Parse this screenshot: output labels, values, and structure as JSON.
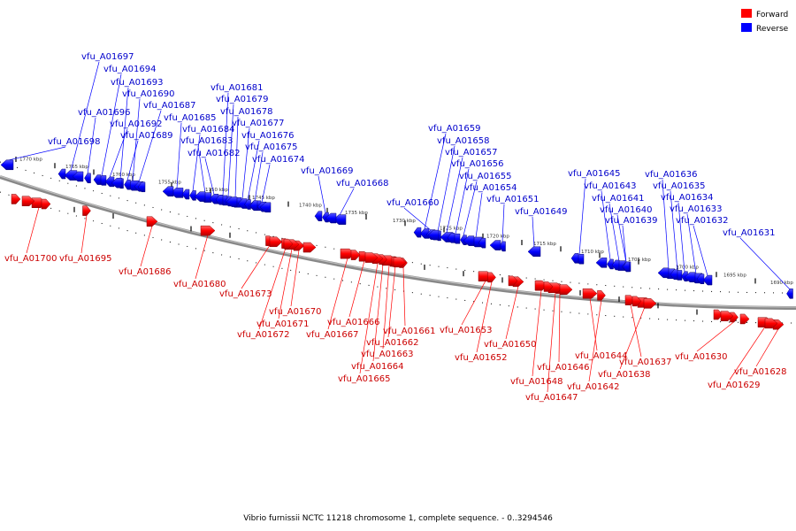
{
  "legend": {
    "forward_label": "Forward",
    "reverse_label": "Reverse",
    "forward_color": "#ff0000",
    "reverse_color": "#0000ff"
  },
  "caption": "Vibrio furnissii NCTC 11218 chromosome 1, complete sequence. - 0..3294546",
  "ticks": [
    "1770 kbp",
    "1765 kbp",
    "1760 kbp",
    "1755 kbp",
    "1750 kbp",
    "1745 kbp",
    "1740 kbp",
    "1735 kbp",
    "1730 kbp",
    "1725 kbp",
    "1720 kbp",
    "1715 kbp",
    "1710 kbp",
    "1705 kbp",
    "1700 kbp",
    "1695 kbp",
    "1690 kbp"
  ],
  "reverse_genes": [
    "vfu_A01697",
    "vfu_A01694",
    "vfu_A01693",
    "vfu_A01690",
    "vfu_A01687",
    "vfu_A01696",
    "vfu_A01685",
    "vfu_A01692",
    "vfu_A01689",
    "vfu_A01698",
    "vfu_A01681",
    "vfu_A01679",
    "vfu_A01678",
    "vfu_A01677",
    "vfu_A01684",
    "vfu_A01683",
    "vfu_A01682",
    "vfu_A01676",
    "vfu_A01675",
    "vfu_A01674",
    "vfu_A01669",
    "vfu_A01668",
    "vfu_A01659",
    "vfu_A01658",
    "vfu_A01657",
    "vfu_A01656",
    "vfu_A01655",
    "vfu_A01654",
    "vfu_A01660",
    "vfu_A01651",
    "vfu_A01649",
    "vfu_A01645",
    "vfu_A01643",
    "vfu_A01641",
    "vfu_A01640",
    "vfu_A01639",
    "vfu_A01636",
    "vfu_A01635",
    "vfu_A01634",
    "vfu_A01633",
    "vfu_A01632",
    "vfu_A01631"
  ],
  "forward_genes": [
    "vfu_A01700",
    "vfu_A01695",
    "vfu_A01686",
    "vfu_A01680",
    "vfu_A01673",
    "vfu_A01670",
    "vfu_A01671",
    "vfu_A01672",
    "vfu_A01666",
    "vfu_A01667",
    "vfu_A01661",
    "vfu_A01662",
    "vfu_A01663",
    "vfu_A01664",
    "vfu_A01665",
    "vfu_A01653",
    "vfu_A01652",
    "vfu_A01650",
    "vfu_A01644",
    "vfu_A01646",
    "vfu_A01648",
    "vfu_A01647",
    "vfu_A01642",
    "vfu_A01637",
    "vfu_A01638",
    "vfu_A01630",
    "vfu_A01628",
    "vfu_A01629"
  ]
}
